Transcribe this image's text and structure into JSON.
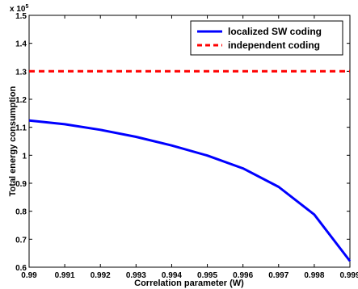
{
  "chart_data": {
    "type": "line",
    "title": "",
    "xlabel": "Correlation parameter (W)",
    "ylabel": "Total energy consumption",
    "y_exponent_label": "x 10",
    "y_exponent_power": "5",
    "xlim": [
      0.99,
      0.999
    ],
    "ylim": [
      0.6,
      1.5
    ],
    "x_ticks": [
      0.99,
      0.991,
      0.992,
      0.993,
      0.994,
      0.995,
      0.996,
      0.997,
      0.998,
      0.999
    ],
    "x_tick_labels": [
      "0.99",
      "0.991",
      "0.992",
      "0.993",
      "0.994",
      "0.995",
      "0.996",
      "0.997",
      "0.998",
      "0.999"
    ],
    "y_ticks": [
      0.6,
      0.7,
      0.8,
      0.9,
      1.0,
      1.1,
      1.2,
      1.3,
      1.4,
      1.5
    ],
    "y_tick_labels": [
      "0.6",
      "0.7",
      "0.8",
      "0.9",
      "1",
      "1.1",
      "1.2",
      "1.3",
      "1.4",
      "1.5"
    ],
    "grid": false,
    "legend_position": "top-right",
    "series": [
      {
        "name": "localized SW coding",
        "color": "#0000ff",
        "style": "solid",
        "x": [
          0.99,
          0.991,
          0.992,
          0.993,
          0.994,
          0.995,
          0.996,
          0.997,
          0.998,
          0.999
        ],
        "y": [
          1.124,
          1.111,
          1.091,
          1.066,
          1.035,
          0.999,
          0.953,
          0.887,
          0.788,
          0.622
        ]
      },
      {
        "name": "independent coding",
        "color": "#ff0000",
        "style": "dashed",
        "x": [
          0.99,
          0.999
        ],
        "y": [
          1.3,
          1.3
        ]
      }
    ]
  }
}
